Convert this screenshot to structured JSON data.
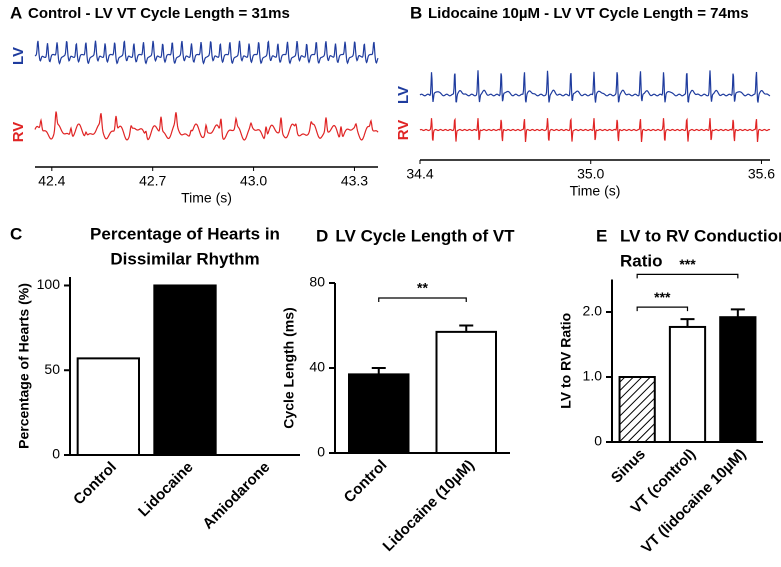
{
  "chart_data": [
    {
      "type": "line",
      "panel": "A",
      "title": "Control - LV VT Cycle Length = 31ms",
      "xlabel": "Time (s)",
      "series": [
        {
          "name": "LV",
          "color": "#1f3c9e"
        },
        {
          "name": "RV",
          "color": "#e02424"
        }
      ],
      "xlim": [
        42.35,
        43.37
      ],
      "xticks": [
        42.4,
        42.7,
        {
          "value": 43,
          "label": "43.0"
        },
        43.3
      ]
    },
    {
      "type": "line",
      "panel": "B",
      "title": "Lidocaine 10µM - LV VT Cycle Length = 74ms",
      "xlabel": "Time (s)",
      "series": [
        {
          "name": "LV",
          "color": "#1f3c9e"
        },
        {
          "name": "RV",
          "color": "#e02424"
        }
      ],
      "xlim": [
        34.4,
        35.63
      ],
      "xticks": [
        34.4,
        {
          "value": 35,
          "label": "35.0"
        },
        35.6
      ]
    },
    {
      "type": "bar",
      "panel": "C",
      "title": [
        "Percentage of Hearts in",
        "Dissimilar Rhythm"
      ],
      "ylabel": "Percentage of Hearts (%)",
      "categories": [
        "Control",
        "Lidocaine",
        "Amiodarone"
      ],
      "values": [
        57,
        100,
        0
      ],
      "colors": [
        "#ffffff",
        "#000000",
        "#ffffff"
      ],
      "ylim": [
        0,
        105
      ],
      "yticks": [
        0,
        50,
        100
      ]
    },
    {
      "type": "bar",
      "panel": "D",
      "title": [
        "LV Cycle Length of VT"
      ],
      "ylabel": "Cycle Length (ms)",
      "categories": [
        "Control",
        "Lidocaine (10µM)"
      ],
      "values": [
        37,
        57
      ],
      "errors": [
        3,
        3
      ],
      "colors": [
        "#000000",
        "#ffffff"
      ],
      "ylim": [
        0,
        80
      ],
      "yticks": [
        0,
        40,
        80
      ],
      "annotations": [
        {
          "text": "**",
          "between": [
            "Control",
            "Lidocaine (10µM)"
          ]
        }
      ]
    },
    {
      "type": "bar",
      "panel": "E",
      "title": [
        "LV to RV Conduction",
        "Ratio"
      ],
      "ylabel": "LV to RV Ratio",
      "categories": [
        "Sinus",
        "VT (control)",
        "VT (lidocaine 10µM)"
      ],
      "values": [
        1.0,
        1.77,
        1.92
      ],
      "errors": [
        0,
        0.12,
        0.12
      ],
      "colors": [
        "hatch",
        "#ffffff",
        "#000000"
      ],
      "ylim": [
        0,
        2.5
      ],
      "yticks": [
        0,
        {
          "value": 1,
          "label": "1.0"
        },
        {
          "value": 2,
          "label": "2.0"
        }
      ],
      "annotations": [
        {
          "text": "***",
          "between": [
            "Sinus",
            "VT (control)"
          ]
        },
        {
          "text": "***",
          "between": [
            "Sinus",
            "VT (lidocaine 10µM)"
          ]
        }
      ]
    }
  ]
}
